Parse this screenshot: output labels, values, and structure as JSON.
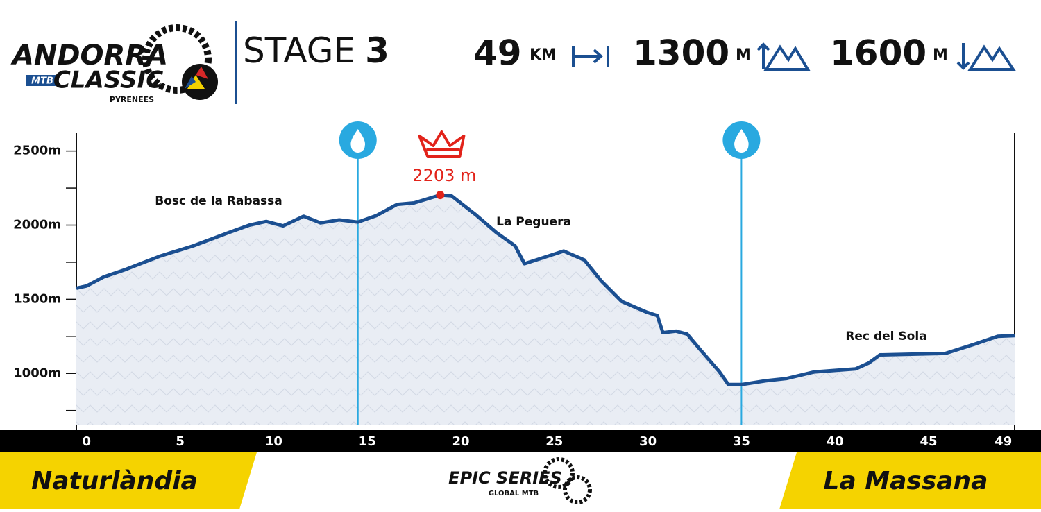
{
  "header": {
    "logo": [
      "ANDORRA",
      "MTB",
      "CLASSIC",
      "PYRENEES"
    ],
    "stage_label": "STAGE",
    "stage_number": "3",
    "stats": [
      {
        "value": "49",
        "unit": "KM"
      },
      {
        "value": "1300",
        "unit": "M"
      },
      {
        "value": "1600",
        "unit": "M"
      }
    ]
  },
  "chart_data": {
    "type": "line",
    "color": "#1b4f91",
    "x": [
      -0.55,
      0,
      0.9,
      2,
      3.9,
      5.7,
      7.6,
      8.7,
      9.6,
      10.5,
      11.6,
      12.5,
      13.5,
      14.5,
      15.5,
      16.6,
      17.5,
      18.9,
      19.5,
      20.8,
      21.9,
      22.9,
      23.4,
      24.4,
      25.5,
      26.6,
      27.5,
      28.6,
      29.9,
      30.5,
      30.8,
      31.5,
      32.1,
      32.8,
      33.8,
      34.3,
      35,
      36.3,
      37.4,
      38.9,
      41.1,
      41.8,
      42.4,
      45.9,
      47.4,
      48.7,
      49.6
    ],
    "values": [
      1575,
      1590,
      1650,
      1697,
      1790,
      1860,
      1950,
      2000,
      2025,
      1995,
      2060,
      2015,
      2035,
      2020,
      2065,
      2140,
      2150,
      2203,
      2198,
      2070,
      1950,
      1860,
      1740,
      1780,
      1825,
      1765,
      1625,
      1485,
      1415,
      1390,
      1275,
      1285,
      1265,
      1160,
      1015,
      925,
      925,
      950,
      965,
      1010,
      1030,
      1070,
      1125,
      1135,
      1195,
      1250,
      1255
    ],
    "xlim": [
      -0.55,
      49.6
    ],
    "xticks": [
      0,
      5,
      10,
      15,
      20,
      25,
      30,
      35,
      40,
      45,
      49
    ],
    "ylim": [
      655,
      2620
    ],
    "yticks": [
      {
        "value": 1000,
        "label": "1000m"
      },
      {
        "value": 1500,
        "label": "1500m"
      },
      {
        "value": 2000,
        "label": "2000m"
      },
      {
        "value": 2500,
        "label": "2500m"
      }
    ],
    "minor_yticks": [
      750,
      1250,
      1750,
      2250
    ],
    "water_stations": [
      14.5,
      35
    ],
    "summit": {
      "x": 18.9,
      "value": 2203,
      "label": "2203 m"
    },
    "annotations": [
      "Bosc de la Rabassa",
      "La Peguera",
      "Rec del Sola"
    ]
  },
  "footer": {
    "start": "Naturlàndia",
    "finish": "La Massana",
    "series_logo": [
      "EPIC SERIES",
      "GLOBAL MTB"
    ]
  }
}
